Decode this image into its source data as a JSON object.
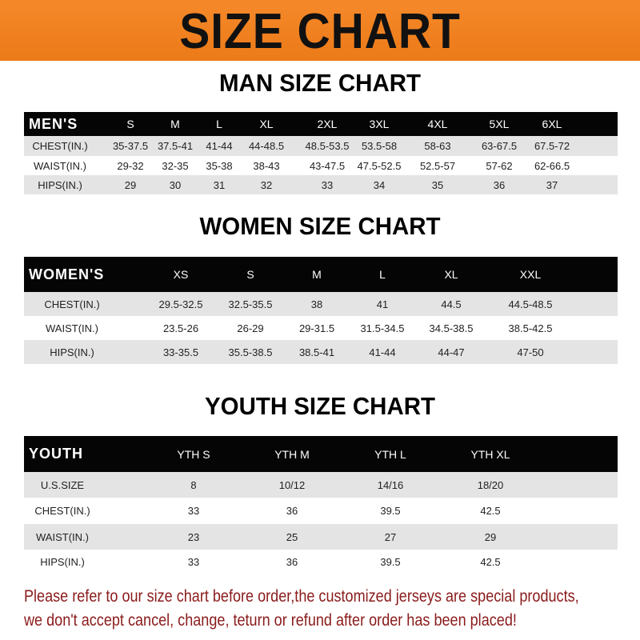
{
  "banner_title": "SIZE CHART",
  "men": {
    "title": "MAN SIZE CHART",
    "header": [
      "MEN'S",
      "S",
      "M",
      "L",
      "XL",
      "2XL",
      "3XL",
      "4XL",
      "5XL",
      "6XL"
    ],
    "rows": [
      [
        "CHEST(IN.)",
        "35-37.5",
        "37.5-41",
        "41-44",
        "44-48.5",
        "48.5-53.5",
        "53.5-58",
        "58-63",
        "63-67.5",
        "67.5-72"
      ],
      [
        "WAIST(IN.)",
        "29-32",
        "32-35",
        "35-38",
        "38-43",
        "43-47.5",
        "47.5-52.5",
        "52.5-57",
        "57-62",
        "62-66.5"
      ],
      [
        "HIPS(IN.)",
        "29",
        "30",
        "31",
        "32",
        "33",
        "34",
        "35",
        "36",
        "37"
      ]
    ]
  },
  "women": {
    "title": "WOMEN SIZE CHART",
    "header": [
      "WOMEN'S",
      "XS",
      "S",
      "M",
      "L",
      "XL",
      "XXL"
    ],
    "rows": [
      [
        "CHEST(IN.)",
        "29.5-32.5",
        "32.5-35.5",
        "38",
        "41",
        "44.5",
        "44.5-48.5"
      ],
      [
        "WAIST(IN.)",
        "23.5-26",
        "26-29",
        "29-31.5",
        "31.5-34.5",
        "34.5-38.5",
        "38.5-42.5"
      ],
      [
        "HIPS(IN.)",
        "33-35.5",
        "35.5-38.5",
        "38.5-41",
        "41-44",
        "44-47",
        "47-50"
      ]
    ]
  },
  "youth": {
    "title": "YOUTH SIZE CHART",
    "header": [
      "YOUTH",
      "YTH S",
      "YTH M",
      "YTH L",
      "YTH XL"
    ],
    "rows": [
      [
        "U.S.SIZE",
        "8",
        "10/12",
        "14/16",
        "18/20"
      ],
      [
        "CHEST(IN.)",
        "33",
        "36",
        "39.5",
        "42.5"
      ],
      [
        "WAIST(IN.)",
        "23",
        "25",
        "27",
        "29"
      ],
      [
        "HIPS(IN.)",
        "33",
        "36",
        "39.5",
        "42.5"
      ]
    ]
  },
  "notice": {
    "line1": "Please refer to our size chart before order,the customized jerseys are special products,",
    "line2": "we don't accept cancel, change, teturn or refund after order has been placed!"
  },
  "colors": {
    "banner": "#ef7f1f",
    "header_bg": "#050505",
    "row_grey": "#e4e4e4",
    "notice_text": "#8b1b1b"
  }
}
